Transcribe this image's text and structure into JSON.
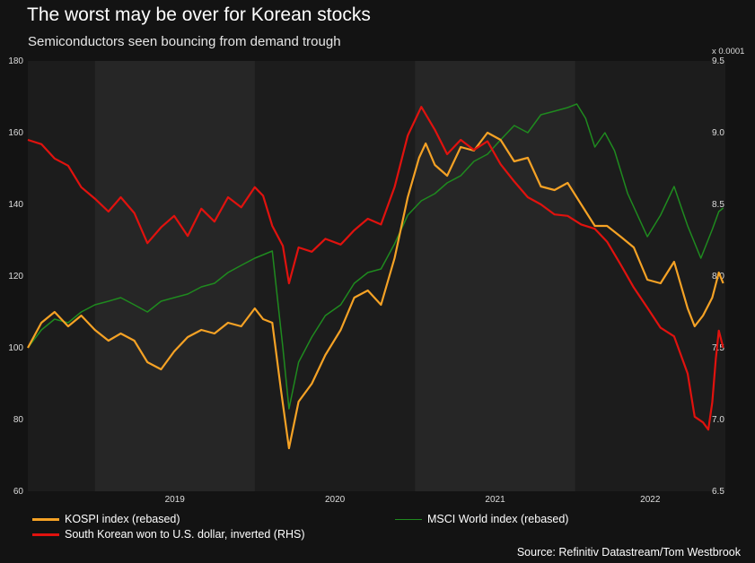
{
  "header": {
    "title": "The worst may be over for Korean stocks",
    "subtitle": "Semiconductors seen bouncing from demand trough"
  },
  "footer": {
    "source": "Source: Refinitiv Datastream/Tom Westbrook"
  },
  "colors": {
    "background": "#131313",
    "plot_background": "#1c1c1c",
    "shaded_band": "#262626",
    "kospi": "#f5a225",
    "msci": "#1f8a1f",
    "won": "#e0120e"
  },
  "chart_data": {
    "type": "line",
    "title": "The worst may be over for Korean stocks",
    "subtitle": "Semiconductors seen bouncing from demand trough",
    "x_range": [
      "2018-08-01",
      "2022-12-10"
    ],
    "x_tick_labels": [
      "2019",
      "2020",
      "2021",
      "2022"
    ],
    "shaded_years": [
      "2019",
      "2021"
    ],
    "y_left": {
      "range": [
        60,
        180
      ],
      "ticks": [
        60,
        80,
        100,
        120,
        140,
        160,
        180
      ]
    },
    "y_right": {
      "range": [
        6.5,
        9.5
      ],
      "ticks": [
        "6.5",
        "7.0",
        "7.5",
        "8.0",
        "8.5",
        "9.0",
        "9.5"
      ],
      "unit_label": "x 0.0001"
    },
    "legend_placement": "bottom",
    "grid": false,
    "series": [
      {
        "name": "KOSPI index (rebased)",
        "axis": "left",
        "points": [
          [
            "2018-08-01",
            100
          ],
          [
            "2018-09-01",
            107
          ],
          [
            "2018-10-01",
            110
          ],
          [
            "2018-11-01",
            106
          ],
          [
            "2018-12-01",
            109
          ],
          [
            "2019-01-01",
            105
          ],
          [
            "2019-02-01",
            102
          ],
          [
            "2019-03-01",
            104
          ],
          [
            "2019-04-01",
            102
          ],
          [
            "2019-05-01",
            96
          ],
          [
            "2019-06-01",
            94
          ],
          [
            "2019-07-01",
            99
          ],
          [
            "2019-08-01",
            103
          ],
          [
            "2019-09-01",
            105
          ],
          [
            "2019-10-01",
            104
          ],
          [
            "2019-11-01",
            107
          ],
          [
            "2019-12-01",
            106
          ],
          [
            "2020-01-01",
            111
          ],
          [
            "2020-01-20",
            108
          ],
          [
            "2020-02-10",
            107
          ],
          [
            "2020-03-01",
            88
          ],
          [
            "2020-03-19",
            72
          ],
          [
            "2020-04-10",
            85
          ],
          [
            "2020-05-10",
            90
          ],
          [
            "2020-06-10",
            98
          ],
          [
            "2020-07-15",
            105
          ],
          [
            "2020-08-15",
            114
          ],
          [
            "2020-09-15",
            116
          ],
          [
            "2020-10-15",
            112
          ],
          [
            "2020-11-15",
            125
          ],
          [
            "2020-12-15",
            142
          ],
          [
            "2021-01-10",
            153
          ],
          [
            "2021-01-25",
            157
          ],
          [
            "2021-02-15",
            151
          ],
          [
            "2021-03-15",
            148
          ],
          [
            "2021-04-15",
            156
          ],
          [
            "2021-05-15",
            155
          ],
          [
            "2021-06-15",
            160
          ],
          [
            "2021-07-15",
            158
          ],
          [
            "2021-08-15",
            152
          ],
          [
            "2021-09-15",
            153
          ],
          [
            "2021-10-15",
            145
          ],
          [
            "2021-11-15",
            144
          ],
          [
            "2021-12-15",
            146
          ],
          [
            "2022-01-15",
            140
          ],
          [
            "2022-02-15",
            134
          ],
          [
            "2022-03-15",
            134
          ],
          [
            "2022-04-15",
            131
          ],
          [
            "2022-05-15",
            128
          ],
          [
            "2022-06-15",
            119
          ],
          [
            "2022-07-15",
            118
          ],
          [
            "2022-08-15",
            124
          ],
          [
            "2022-09-15",
            111
          ],
          [
            "2022-10-01",
            106
          ],
          [
            "2022-10-20",
            109
          ],
          [
            "2022-11-10",
            114
          ],
          [
            "2022-11-25",
            121
          ],
          [
            "2022-12-05",
            118
          ]
        ]
      },
      {
        "name": "MSCI World index (rebased)",
        "axis": "left",
        "points": [
          [
            "2018-08-01",
            100
          ],
          [
            "2018-09-01",
            105
          ],
          [
            "2018-10-01",
            108
          ],
          [
            "2018-11-01",
            107
          ],
          [
            "2018-12-01",
            110
          ],
          [
            "2019-01-01",
            112
          ],
          [
            "2019-02-01",
            113
          ],
          [
            "2019-03-01",
            114
          ],
          [
            "2019-04-01",
            112
          ],
          [
            "2019-05-01",
            110
          ],
          [
            "2019-06-01",
            113
          ],
          [
            "2019-07-01",
            114
          ],
          [
            "2019-08-01",
            115
          ],
          [
            "2019-09-01",
            117
          ],
          [
            "2019-10-01",
            118
          ],
          [
            "2019-11-01",
            121
          ],
          [
            "2019-12-01",
            123
          ],
          [
            "2020-01-01",
            125
          ],
          [
            "2020-02-10",
            127
          ],
          [
            "2020-03-05",
            100
          ],
          [
            "2020-03-19",
            83
          ],
          [
            "2020-04-10",
            96
          ],
          [
            "2020-05-10",
            103
          ],
          [
            "2020-06-10",
            109
          ],
          [
            "2020-07-15",
            112
          ],
          [
            "2020-08-15",
            118
          ],
          [
            "2020-09-15",
            121
          ],
          [
            "2020-10-15",
            122
          ],
          [
            "2020-11-15",
            129
          ],
          [
            "2020-12-15",
            137
          ],
          [
            "2021-01-15",
            141
          ],
          [
            "2021-02-15",
            143
          ],
          [
            "2021-03-15",
            146
          ],
          [
            "2021-04-15",
            148
          ],
          [
            "2021-05-15",
            152
          ],
          [
            "2021-06-15",
            154
          ],
          [
            "2021-07-15",
            158
          ],
          [
            "2021-08-15",
            162
          ],
          [
            "2021-09-15",
            160
          ],
          [
            "2021-10-15",
            165
          ],
          [
            "2021-11-15",
            166
          ],
          [
            "2021-12-15",
            167
          ],
          [
            "2022-01-05",
            168
          ],
          [
            "2022-01-25",
            164
          ],
          [
            "2022-02-15",
            156
          ],
          [
            "2022-03-10",
            160
          ],
          [
            "2022-04-01",
            155
          ],
          [
            "2022-05-01",
            143
          ],
          [
            "2022-06-15",
            131
          ],
          [
            "2022-07-15",
            137
          ],
          [
            "2022-08-15",
            145
          ],
          [
            "2022-09-15",
            134
          ],
          [
            "2022-10-15",
            125
          ],
          [
            "2022-11-10",
            133
          ],
          [
            "2022-11-25",
            138
          ],
          [
            "2022-12-05",
            139
          ]
        ]
      },
      {
        "name": "South Korean won to U.S. dollar, inverted (RHS)",
        "axis": "right",
        "points": [
          [
            "2018-08-01",
            8.95
          ],
          [
            "2018-09-01",
            8.92
          ],
          [
            "2018-10-01",
            8.82
          ],
          [
            "2018-11-01",
            8.77
          ],
          [
            "2018-12-01",
            8.62
          ],
          [
            "2019-01-01",
            8.54
          ],
          [
            "2019-02-01",
            8.45
          ],
          [
            "2019-03-01",
            8.55
          ],
          [
            "2019-04-01",
            8.44
          ],
          [
            "2019-05-01",
            8.23
          ],
          [
            "2019-06-01",
            8.34
          ],
          [
            "2019-07-01",
            8.42
          ],
          [
            "2019-08-01",
            8.28
          ],
          [
            "2019-09-01",
            8.47
          ],
          [
            "2019-10-01",
            8.38
          ],
          [
            "2019-11-01",
            8.55
          ],
          [
            "2019-12-01",
            8.48
          ],
          [
            "2020-01-01",
            8.62
          ],
          [
            "2020-01-20",
            8.56
          ],
          [
            "2020-02-10",
            8.35
          ],
          [
            "2020-03-05",
            8.21
          ],
          [
            "2020-03-19",
            7.95
          ],
          [
            "2020-04-10",
            8.2
          ],
          [
            "2020-05-10",
            8.17
          ],
          [
            "2020-06-10",
            8.26
          ],
          [
            "2020-07-15",
            8.22
          ],
          [
            "2020-08-15",
            8.32
          ],
          [
            "2020-09-15",
            8.4
          ],
          [
            "2020-10-15",
            8.36
          ],
          [
            "2020-11-15",
            8.62
          ],
          [
            "2020-12-15",
            8.98
          ],
          [
            "2021-01-15",
            9.18
          ],
          [
            "2021-02-15",
            9.02
          ],
          [
            "2021-03-15",
            8.85
          ],
          [
            "2021-04-15",
            8.95
          ],
          [
            "2021-05-15",
            8.88
          ],
          [
            "2021-06-15",
            8.94
          ],
          [
            "2021-07-15",
            8.78
          ],
          [
            "2021-08-15",
            8.66
          ],
          [
            "2021-09-15",
            8.55
          ],
          [
            "2021-10-15",
            8.5
          ],
          [
            "2021-11-15",
            8.43
          ],
          [
            "2021-12-15",
            8.42
          ],
          [
            "2022-01-15",
            8.36
          ],
          [
            "2022-02-15",
            8.33
          ],
          [
            "2022-03-15",
            8.24
          ],
          [
            "2022-04-15",
            8.08
          ],
          [
            "2022-05-15",
            7.92
          ],
          [
            "2022-06-15",
            7.78
          ],
          [
            "2022-07-15",
            7.64
          ],
          [
            "2022-08-15",
            7.58
          ],
          [
            "2022-09-15",
            7.32
          ],
          [
            "2022-10-01",
            7.02
          ],
          [
            "2022-10-20",
            6.98
          ],
          [
            "2022-11-01",
            6.93
          ],
          [
            "2022-11-10",
            7.12
          ],
          [
            "2022-11-18",
            7.42
          ],
          [
            "2022-11-25",
            7.62
          ],
          [
            "2022-12-05",
            7.5
          ]
        ]
      }
    ]
  }
}
